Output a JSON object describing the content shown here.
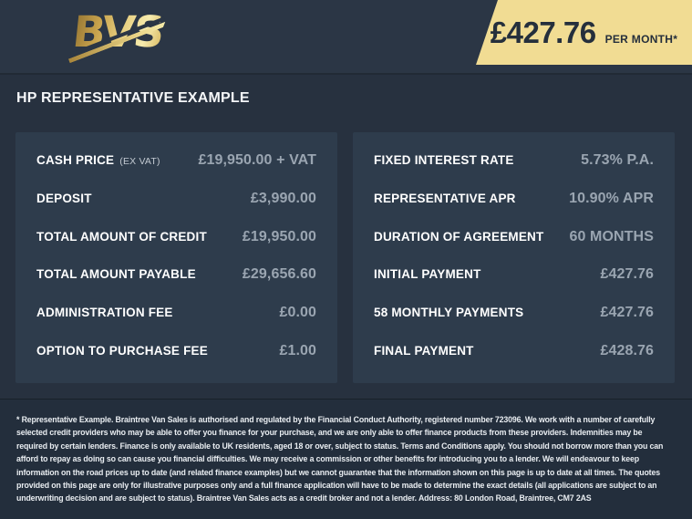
{
  "header": {
    "logo": "BVS",
    "price_banner": {
      "amount": "£427.76",
      "period": "PER MONTH*"
    }
  },
  "title": "HP REPRESENTATIVE EXAMPLE",
  "finance_example": {
    "left_rows": [
      {
        "label": "CASH PRICE",
        "note": "(EX VAT)",
        "value": "£19,950.00 + VAT"
      },
      {
        "label": "DEPOSIT",
        "value": "£3,990.00"
      },
      {
        "label": "TOTAL AMOUNT OF CREDIT",
        "value": "£19,950.00"
      },
      {
        "label": "TOTAL AMOUNT PAYABLE",
        "value": "£29,656.60"
      },
      {
        "label": "ADMINISTRATION FEE",
        "value": "£0.00"
      },
      {
        "label": "OPTION TO PURCHASE FEE",
        "value": "£1.00"
      }
    ],
    "right_rows": [
      {
        "label": "FIXED INTEREST RATE",
        "value": "5.73% P.A."
      },
      {
        "label": "REPRESENTATIVE APR",
        "value": "10.90% APR"
      },
      {
        "label": "DURATION OF AGREEMENT",
        "value": "60 MONTHS"
      },
      {
        "label": "INITIAL PAYMENT",
        "value": "£427.76"
      },
      {
        "label": "58 MONTHLY PAYMENTS",
        "value": "£427.76"
      },
      {
        "label": "FINAL PAYMENT",
        "value": "£428.76"
      }
    ]
  },
  "footer": {
    "disclaimer": "* Representative Example. Braintree Van Sales is authorised and regulated by the Financial Conduct Authority, registered number 723096. We work with a number of carefully selected credit providers who may be able to offer you finance for your purchase, and we are only able to offer finance products from these providers. Indemnities may be required by certain lenders. Finance is only available to UK residents, aged 18 or over, subject to status. Terms and Conditions apply. You should not borrow more than you can afford to repay as doing so can cause you financial difficulties. We may receive a commission or other benefits for introducing you to a lender. We will endeavour to keep information on the road prices up to date (and related finance examples) but we cannot guarantee that the information shown on this page is up to date at all times. The quotes provided on this page are only for illustrative purposes only and a full finance application will have to be made to determine the exact details (all applications are subject to an underwriting decision and are subject to status). Braintree Van Sales acts as a credit broker and not a lender. Address: 80 London Road, Braintree, CM7 2AS"
  },
  "colors": {
    "background": "#27313f",
    "header_band": "#2b3645",
    "panel": "#2e3c4c",
    "footer_band": "#232e3c",
    "accent_gold": "#f1dc93",
    "label_text": "#ffffff",
    "value_text": "#9aa5b1",
    "banner_text": "#252f3c"
  }
}
